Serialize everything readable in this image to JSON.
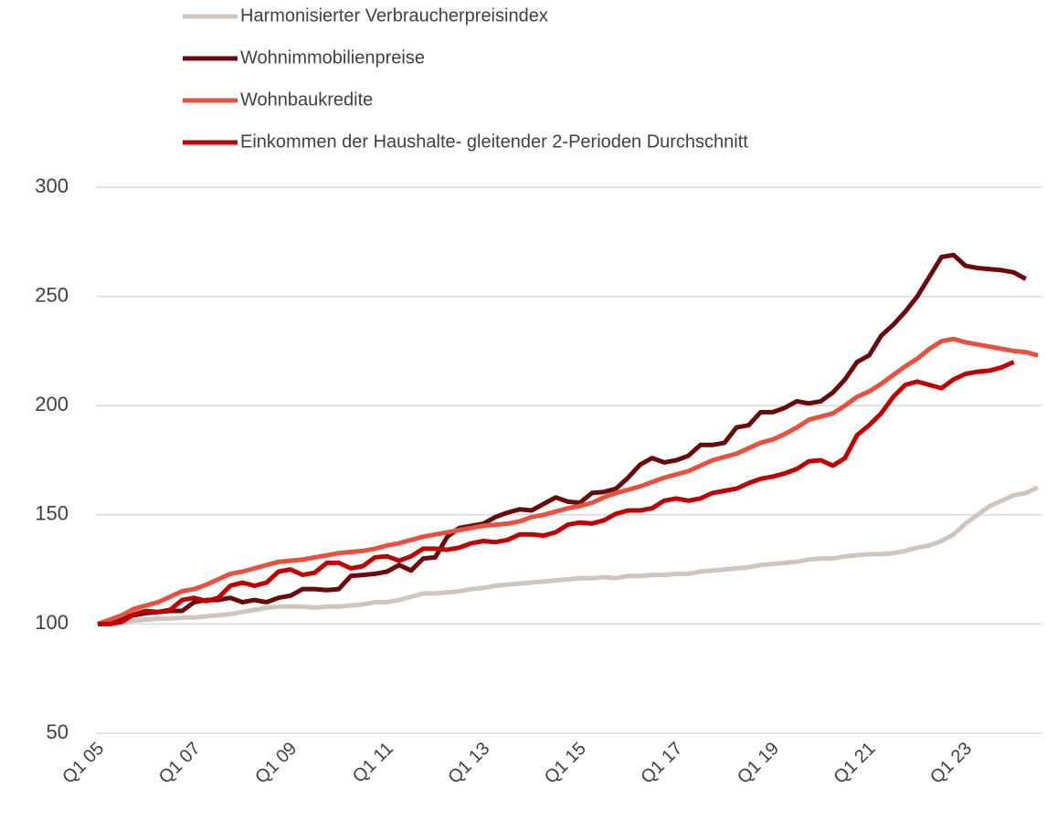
{
  "chart_data": {
    "type": "line",
    "categories": [
      "Q1 05",
      null,
      null,
      null,
      null,
      null,
      null,
      null,
      "Q1 07",
      null,
      null,
      null,
      null,
      null,
      null,
      null,
      "Q1 09",
      null,
      null,
      null,
      null,
      null,
      null,
      null,
      "Q1 11",
      null,
      null,
      null,
      null,
      null,
      null,
      null,
      "Q1 13",
      null,
      null,
      null,
      null,
      null,
      null,
      null,
      "Q1 15",
      null,
      null,
      null,
      null,
      null,
      null,
      null,
      "Q1 17",
      null,
      null,
      null,
      null,
      null,
      null,
      null,
      "Q1 19",
      null,
      null,
      null,
      null,
      null,
      null,
      null,
      "Q1 21",
      null,
      null,
      null,
      null,
      null,
      null,
      null,
      "Q1 23",
      null,
      null,
      null,
      null,
      null,
      null
    ],
    "series": [
      {
        "name": "Harmonisierter Verbraucherpreisindex",
        "color": "#d0c4bf",
        "values": [
          100,
          100.5,
          101,
          101.5,
          102,
          102.5,
          102.5,
          103,
          103,
          103.5,
          104,
          104.5,
          105.5,
          106.5,
          107.5,
          108,
          108,
          108,
          107.5,
          108,
          108,
          108.5,
          109,
          110,
          110,
          111,
          112.5,
          114,
          114,
          114.5,
          115,
          116,
          116.5,
          117.5,
          118,
          118.5,
          119,
          119.5,
          120,
          120.5,
          121,
          121,
          121.5,
          121,
          122,
          122,
          122.5,
          122.5,
          123,
          123,
          124,
          124.5,
          125,
          125.5,
          126,
          127,
          127.5,
          128,
          128.5,
          129.5,
          130,
          130,
          131,
          131.5,
          132,
          132,
          132.5,
          133.5,
          135,
          136,
          138,
          141,
          146,
          150,
          154,
          156.5,
          159,
          160,
          162.5
        ]
      },
      {
        "name": "Wohnimmobilienpreise",
        "color": "#6b0a0a",
        "values": [
          100,
          101.5,
          103,
          104,
          105,
          105.5,
          106,
          106,
          110,
          111,
          111,
          112,
          110,
          111,
          110,
          112,
          113,
          116,
          116,
          115.5,
          116,
          122,
          122.5,
          123,
          124,
          127,
          124.5,
          130,
          130.5,
          140,
          144,
          145,
          146,
          149,
          151,
          152.5,
          152,
          155,
          158,
          156,
          155.5,
          160,
          160.5,
          162,
          167,
          173,
          176,
          174,
          175,
          177,
          182,
          182,
          183,
          190,
          191,
          197,
          197,
          199,
          202,
          201,
          202,
          206,
          212,
          220,
          223,
          232,
          237,
          243,
          250,
          259,
          268,
          269,
          264,
          263,
          262.5,
          262,
          261,
          258,
          null
        ]
      },
      {
        "name": "Wohnbaukredite",
        "color": "#e8503f",
        "values": [
          100,
          102,
          104,
          107,
          108.5,
          110,
          112.5,
          115,
          116,
          118,
          120.5,
          123,
          124,
          125.5,
          127,
          128.5,
          129,
          129.5,
          130.5,
          131.5,
          132.5,
          133,
          133.5,
          134.5,
          136,
          137,
          138.5,
          140,
          141,
          142,
          143,
          144,
          145,
          145.5,
          146,
          147,
          149,
          150,
          151.5,
          153,
          154,
          155.5,
          158,
          160,
          161.5,
          163,
          165,
          167,
          168.5,
          170,
          172.5,
          175,
          176.5,
          178,
          180.5,
          183,
          184.5,
          187,
          190,
          193.5,
          195,
          196.5,
          200,
          204,
          206.5,
          210,
          214,
          218,
          221.5,
          226,
          229.5,
          230.5,
          229,
          228,
          227,
          226,
          225,
          224.5,
          223
        ]
      },
      {
        "name": "Einkommen der Haushalte- gleitender 2-Perioden Durchschnitt",
        "color": "#c00000",
        "values": [
          100,
          100,
          101,
          104.5,
          106,
          105.5,
          106.5,
          111,
          112,
          110.5,
          112,
          117.5,
          119,
          117.5,
          119,
          124,
          125,
          122.5,
          123.5,
          128,
          128,
          125.5,
          126.5,
          130.5,
          131,
          129,
          131,
          134.5,
          134.5,
          134,
          135,
          137,
          138,
          137.5,
          138.5,
          141,
          141,
          140.5,
          142,
          145.5,
          146.5,
          146,
          147.5,
          150.5,
          152,
          152,
          153,
          156.5,
          157.5,
          156.5,
          157.5,
          160,
          161,
          162,
          164.5,
          166.5,
          167.5,
          169,
          171,
          174.5,
          175,
          172.5,
          176,
          186.5,
          191,
          196.5,
          204,
          209.5,
          211,
          209.5,
          208,
          212,
          214.5,
          215.5,
          216,
          217.5,
          220,
          null,
          null
        ]
      }
    ],
    "ylim": [
      50,
      300
    ],
    "yticks": [
      50,
      100,
      150,
      200,
      250,
      300
    ],
    "grid": true,
    "legend": "top"
  }
}
